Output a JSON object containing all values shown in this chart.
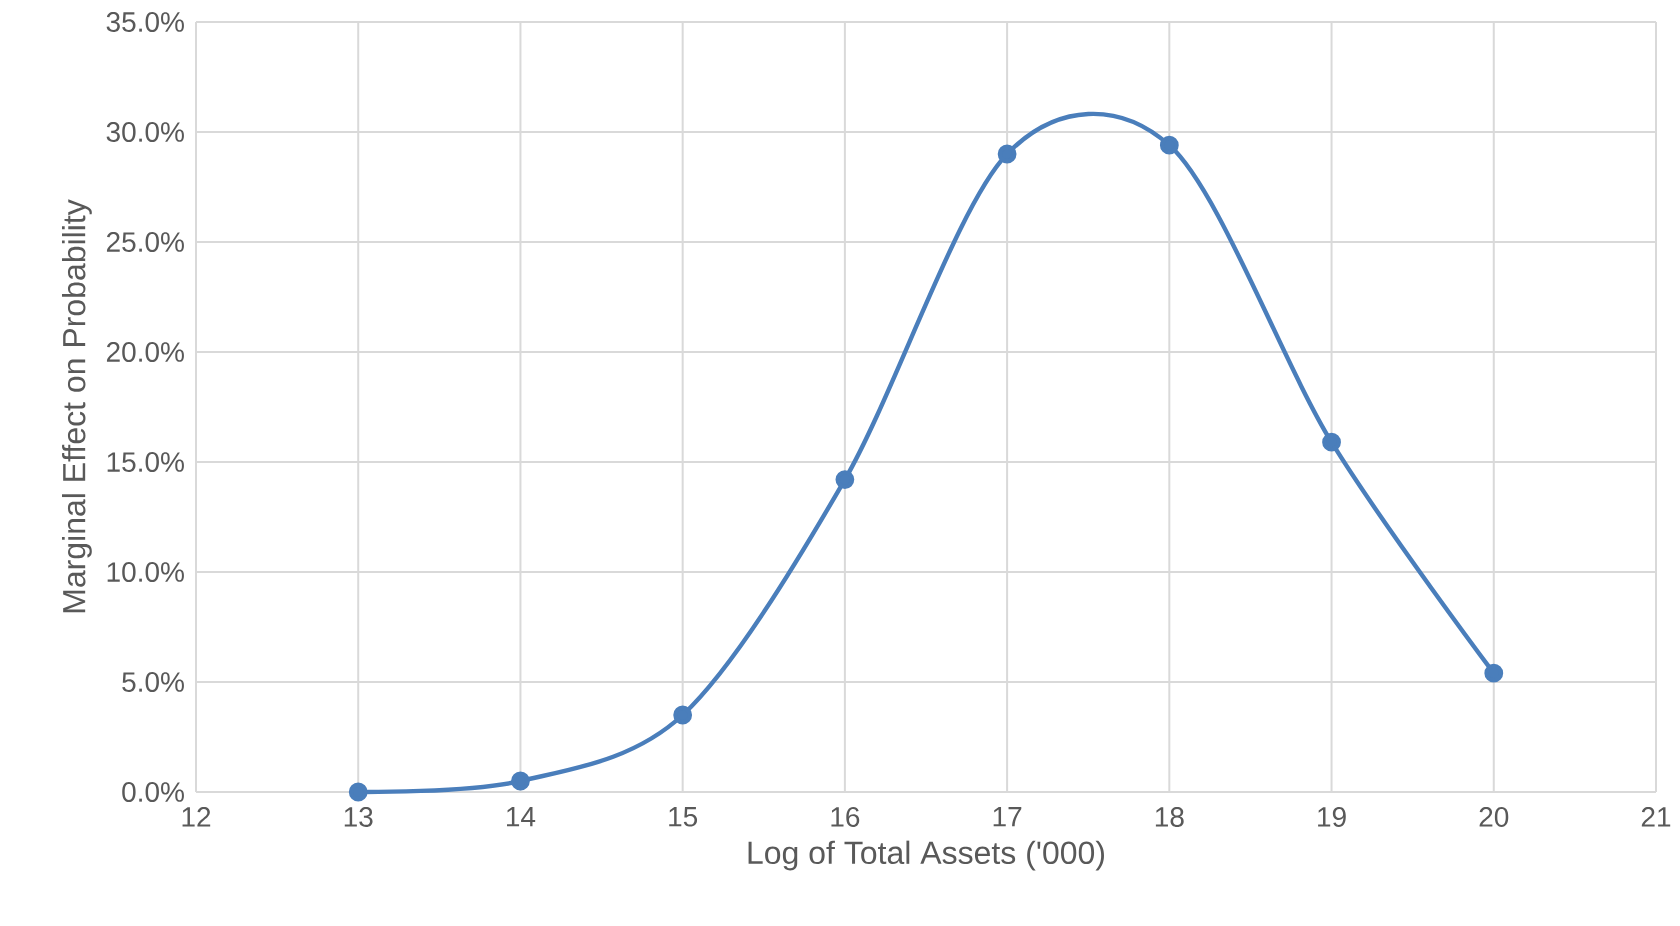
{
  "chart_data": {
    "type": "line",
    "xlabel": "Log of Total Assets ('000)",
    "ylabel": "Marginal Effect on Probability",
    "x": [
      13,
      14,
      15,
      16,
      17,
      18,
      19,
      20
    ],
    "series": [
      {
        "color": "#4a7ebb",
        "values": [
          0.0,
          0.5,
          3.5,
          14.2,
          29.0,
          29.4,
          15.9,
          5.4
        ]
      }
    ],
    "xlim": [
      12,
      21
    ],
    "xticks": [
      12,
      13,
      14,
      15,
      16,
      17,
      18,
      19,
      20,
      21
    ],
    "ylim": [
      0,
      35
    ],
    "yticks": [
      {
        "value": 0,
        "label": "0.0%"
      },
      {
        "value": 5,
        "label": "5.0%"
      },
      {
        "value": 10,
        "label": "10.0%"
      },
      {
        "value": 15,
        "label": "15.0%"
      },
      {
        "value": 20,
        "label": "20.0%"
      },
      {
        "value": 25,
        "label": "25.0%"
      },
      {
        "value": 30,
        "label": "30.0%"
      },
      {
        "value": 35,
        "label": "35.0%"
      }
    ],
    "grid": true,
    "marker": "circle",
    "line_style": "solid"
  }
}
